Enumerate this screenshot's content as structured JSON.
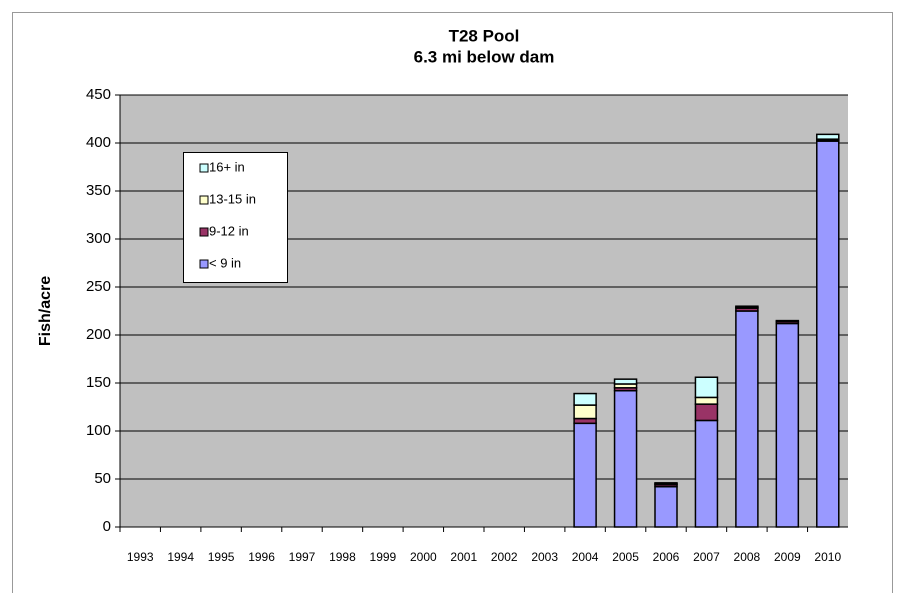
{
  "chart_data": {
    "type": "stacked_bar",
    "title": "T28 Pool",
    "subtitle": "6.3 mi below dam",
    "y_label": "Fish/acre",
    "categories": [
      "1993",
      "1994",
      "1995",
      "1996",
      "1997",
      "1998",
      "1999",
      "2000",
      "2001",
      "2002",
      "2003",
      "2004",
      "2005",
      "2006",
      "2007",
      "2008",
      "2009",
      "2010"
    ],
    "series": [
      {
        "name": "< 9 in",
        "color": "#9999ff",
        "values": [
          null,
          null,
          null,
          null,
          null,
          null,
          null,
          null,
          null,
          null,
          null,
          108,
          142,
          42,
          111,
          225,
          212,
          402
        ]
      },
      {
        "name": "9-12 in",
        "color": "#993366",
        "values": [
          null,
          null,
          null,
          null,
          null,
          null,
          null,
          null,
          null,
          null,
          null,
          5,
          3,
          2,
          17,
          3,
          2,
          1
        ]
      },
      {
        "name": "13-15 in",
        "color": "#ffffcc",
        "values": [
          null,
          null,
          null,
          null,
          null,
          null,
          null,
          null,
          null,
          null,
          null,
          14,
          4,
          1,
          7,
          1,
          1,
          1
        ]
      },
      {
        "name": "16+ in",
        "color": "#ccffff",
        "values": [
          null,
          null,
          null,
          null,
          null,
          null,
          null,
          null,
          null,
          null,
          null,
          12,
          5,
          1,
          21,
          1,
          0,
          5
        ]
      }
    ],
    "ylim": [
      0,
      450
    ],
    "yticks": [
      0,
      50,
      100,
      150,
      200,
      250,
      300,
      350,
      400,
      450
    ],
    "grid": true,
    "plot_background": "#c0c0c0"
  }
}
